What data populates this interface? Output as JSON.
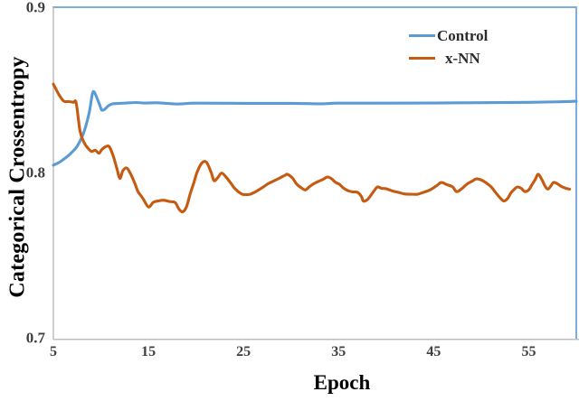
{
  "chart_data": {
    "type": "line",
    "title": "",
    "xlabel": "Epoch",
    "ylabel": "Categorical Crossentropy",
    "xlim": [
      5,
      60
    ],
    "ylim": [
      0.7,
      0.9
    ],
    "grid": false,
    "legend_position": "top-right-inside",
    "x_ticks": [
      "5",
      "15",
      "25",
      "35",
      "45",
      "55"
    ],
    "x_tick_values": [
      5,
      15,
      25,
      35,
      45,
      55
    ],
    "y_ticks": [
      "0.9",
      "0.8",
      "0.7"
    ],
    "y_tick_values": [
      0.9,
      0.8,
      0.7
    ],
    "colors": {
      "axis": "#BFBFBF",
      "plot_border": "#7EACDB",
      "control": "#5B9BD5",
      "xnn": "#C55A11"
    },
    "series": [
      {
        "name": "Control",
        "color": "#5B9BD5",
        "x": [
          5,
          5.6,
          6,
          6.5,
          7,
          7.5,
          8,
          8.4,
          8.8,
          9.1,
          9.3,
          9.6,
          9.9,
          10.1,
          10.4,
          10.8,
          11.2,
          11.8,
          12.7,
          13.7,
          14.6,
          16,
          18,
          20,
          25,
          30,
          33,
          35,
          40,
          45,
          50,
          55,
          58,
          60
        ],
        "y": [
          0.805,
          0.8066,
          0.8082,
          0.8104,
          0.8131,
          0.8164,
          0.8219,
          0.8284,
          0.8377,
          0.8481,
          0.8492,
          0.8454,
          0.841,
          0.8383,
          0.8388,
          0.841,
          0.8421,
          0.8423,
          0.8426,
          0.8429,
          0.8426,
          0.8427,
          0.842,
          0.8425,
          0.8424,
          0.8424,
          0.8421,
          0.8425,
          0.8425,
          0.8426,
          0.8428,
          0.843,
          0.8433,
          0.8437
        ]
      },
      {
        "name": "x-NN",
        "color": "#C55A11",
        "x": [
          5,
          5.6,
          6.1,
          6.6,
          7.1,
          7.4,
          7.8,
          8.2,
          8.6,
          9,
          9.4,
          9.8,
          10.1,
          10.6,
          10.9,
          11.3,
          11.7,
          12,
          12.3,
          12.7,
          13.1,
          13.6,
          13.9,
          14.4,
          15,
          15.5,
          16,
          16.6,
          17.2,
          17.8,
          18.2,
          18.6,
          19,
          19.4,
          19.8,
          20.1,
          20.6,
          21.1,
          21.6,
          21.9,
          22.3,
          22.7,
          23.2,
          23.7,
          24.1,
          24.8,
          25.3,
          25.7,
          26.3,
          27,
          27.6,
          28.2,
          28.9,
          29.4,
          29.6,
          30.1,
          30.6,
          31.1,
          31.5,
          31.9,
          32.4,
          32.9,
          33.4,
          33.8,
          34.2,
          34.7,
          35.1,
          35.5,
          36,
          36.5,
          37,
          37.4,
          37.6,
          38,
          38.4,
          38.8,
          39.1,
          39.5,
          40,
          40.6,
          41.3,
          41.9,
          42.6,
          43.3,
          43.9,
          44.6,
          45.3,
          45.8,
          46.4,
          47,
          47.4,
          47.9,
          48.5,
          49.1,
          49.5,
          50.1,
          50.7,
          51.1,
          51.6,
          52.1,
          52.4,
          52.8,
          53.1,
          53.5,
          53.8,
          54.2,
          54.6,
          55,
          55.3,
          55.7,
          56,
          56.4,
          56.7,
          57,
          57.3,
          57.6,
          58,
          58.4,
          58.9,
          59.3
        ],
        "y": [
          0.854,
          0.8475,
          0.8437,
          0.8435,
          0.843,
          0.8426,
          0.8257,
          0.819,
          0.8155,
          0.8133,
          0.814,
          0.8122,
          0.8145,
          0.8164,
          0.816,
          0.8105,
          0.8025,
          0.797,
          0.8015,
          0.8033,
          0.8,
          0.7935,
          0.789,
          0.785,
          0.7797,
          0.7825,
          0.7833,
          0.7838,
          0.783,
          0.7824,
          0.7785,
          0.7768,
          0.7798,
          0.7878,
          0.7948,
          0.8005,
          0.8062,
          0.8068,
          0.8005,
          0.7956,
          0.7975,
          0.8002,
          0.7975,
          0.7938,
          0.7908,
          0.7876,
          0.7872,
          0.7874,
          0.789,
          0.7915,
          0.7938,
          0.7955,
          0.7975,
          0.799,
          0.7995,
          0.7975,
          0.7935,
          0.7912,
          0.79,
          0.7918,
          0.7938,
          0.7952,
          0.7965,
          0.7978,
          0.797,
          0.7945,
          0.7934,
          0.7912,
          0.7895,
          0.7888,
          0.7885,
          0.786,
          0.7833,
          0.784,
          0.7868,
          0.79,
          0.7918,
          0.791,
          0.7907,
          0.7895,
          0.7885,
          0.7876,
          0.7874,
          0.7874,
          0.7885,
          0.79,
          0.7925,
          0.7945,
          0.7932,
          0.7918,
          0.789,
          0.7905,
          0.7935,
          0.7955,
          0.7967,
          0.7958,
          0.7935,
          0.7915,
          0.7878,
          0.7845,
          0.7833,
          0.785,
          0.788,
          0.7905,
          0.7918,
          0.791,
          0.789,
          0.79,
          0.7928,
          0.7965,
          0.7995,
          0.796,
          0.7925,
          0.7905,
          0.7922,
          0.7945,
          0.7938,
          0.7922,
          0.791,
          0.7905
        ]
      }
    ]
  }
}
